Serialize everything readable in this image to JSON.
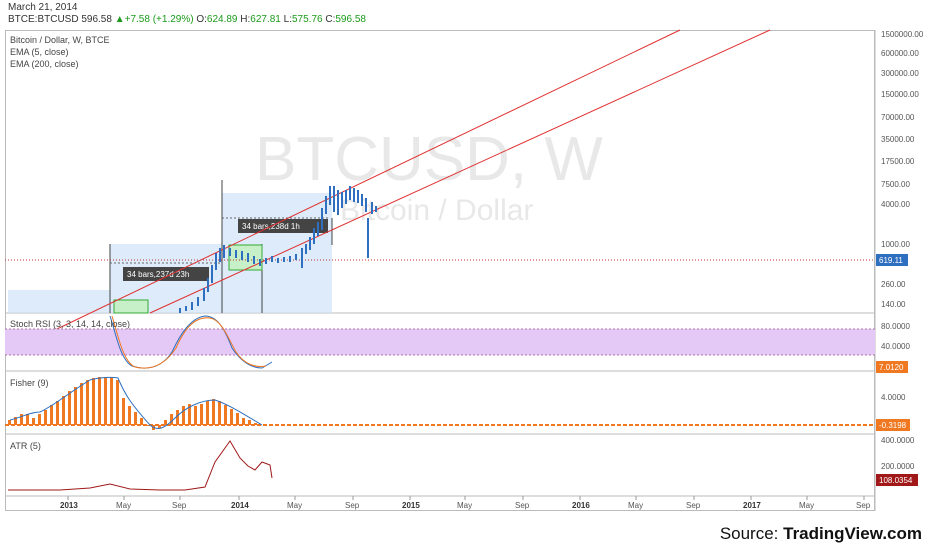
{
  "header": {
    "date": "March 21, 2014",
    "symbol": "BTCE:BTCUSD",
    "last": "596.58",
    "change": "+7.58 (+1.29%)",
    "open_label": "O:",
    "open": "624.89",
    "high_label": "H:",
    "high": "627.81",
    "low_label": "L:",
    "low": "575.76",
    "close_label": "C:",
    "close": "596.58"
  },
  "main_pane": {
    "title": "Bitcoin / Dollar, W, BTCE",
    "studies": [
      "EMA (5, close)",
      "EMA (200, close)"
    ],
    "watermark_symbol": "BTCUSD, W",
    "watermark_name": "Bitcoin / Dollar",
    "price_axis": [
      "1500000.00",
      "600000.00",
      "300000.00",
      "150000.00",
      "70000.00",
      "35000.00",
      "17500.00",
      "7500.00",
      "4000.00",
      "1000.00",
      "260.00",
      "140.00"
    ],
    "last_price_tag": "619.11",
    "measure_1": "34 bars,237d 23h",
    "measure_2": "34 bars,238d 1h"
  },
  "stoch_pane": {
    "title": "Stoch RSI (3, 3, 14, 14, close)",
    "axis": [
      "80.0000",
      "40.0000"
    ],
    "value_tag": "7.0120"
  },
  "fisher_pane": {
    "title": "Fisher (9)",
    "axis": [
      "4.0000"
    ],
    "value_tag": "-0.3198"
  },
  "atr_pane": {
    "title": "ATR (5)",
    "axis": [
      "400.0000",
      "200.0000"
    ],
    "value_tag": "108.0354"
  },
  "time_axis": [
    {
      "label": "2013",
      "bold": true
    },
    {
      "label": "May",
      "bold": false
    },
    {
      "label": "Sep",
      "bold": false
    },
    {
      "label": "2014",
      "bold": true
    },
    {
      "label": "May",
      "bold": false
    },
    {
      "label": "Sep",
      "bold": false
    },
    {
      "label": "2015",
      "bold": true
    },
    {
      "label": "May",
      "bold": false
    },
    {
      "label": "Sep",
      "bold": false
    },
    {
      "label": "2016",
      "bold": true
    },
    {
      "label": "May",
      "bold": false
    },
    {
      "label": "Sep",
      "bold": false
    },
    {
      "label": "2017",
      "bold": true
    },
    {
      "label": "May",
      "bold": false
    },
    {
      "label": "Sep",
      "bold": false
    }
  ],
  "footer": {
    "prefix": "Source: ",
    "brand": "TradingView.com"
  },
  "colors": {
    "up": "#2f6fbf",
    "trend": "#e03030",
    "stoch_band": "#e4c8f6",
    "fisher": "#f07820",
    "atr": "#a01818",
    "grid": "#eeeeee"
  }
}
